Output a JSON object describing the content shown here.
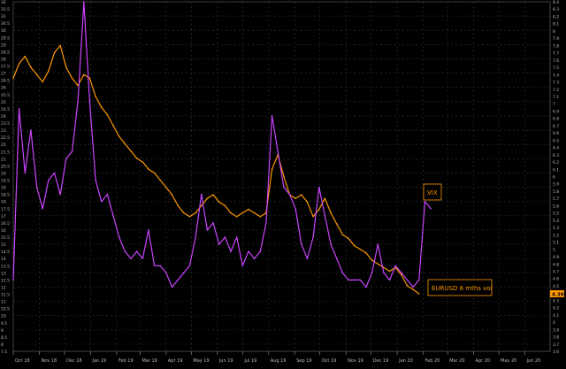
{
  "chart_data": {
    "type": "line",
    "background": "#000000",
    "grid": true,
    "grid_color": "#2e2e2e",
    "x_range": [
      "2018-10-01",
      "2020-07-01"
    ],
    "x_tick_months": [
      "2018-10-01",
      "2018-11-01",
      "2018-12-01",
      "2019-01-01",
      "2019-02-01",
      "2019-03-01",
      "2019-04-01",
      "2019-05-01",
      "2019-06-01",
      "2019-07-01",
      "2019-08-01",
      "2019-09-01",
      "2019-10-01",
      "2019-11-01",
      "2019-12-01",
      "2020-01-01",
      "2020-02-01",
      "2020-03-01",
      "2020-04-01",
      "2020-05-01",
      "2020-06-01"
    ],
    "x_tick_labels": [
      "Oct 18",
      "Nov 18",
      "Dec 18",
      "Jan 19",
      "Feb 19",
      "Mar 19",
      "Apr 19",
      "May 19",
      "Jun 19",
      "Jul 19",
      "Aug 19",
      "Sep 19",
      "Oct 19",
      "Nov 19",
      "Dec 19",
      "Jan 20",
      "Feb 20",
      "Mar 20",
      "Apr 20",
      "May 20",
      "Jun 20"
    ],
    "left_axis": {
      "series": "VIX",
      "ylim": [
        7.5,
        32
      ],
      "ticks": [
        32,
        31.5,
        31,
        30.5,
        30,
        29.5,
        29,
        28.5,
        28,
        27.5,
        27,
        26.5,
        26,
        25.5,
        25,
        24.5,
        24,
        23.5,
        23,
        22.5,
        22,
        21.5,
        21,
        20.5,
        20,
        19.5,
        19,
        18.5,
        18,
        17.5,
        17,
        16.5,
        16,
        15.5,
        15,
        14.5,
        14,
        13.5,
        13,
        12.5,
        12,
        11.5,
        11,
        10.5,
        10,
        9.5,
        9,
        8.5,
        8,
        7.5
      ],
      "tick_labels": [
        "32",
        "31.5",
        "31",
        "30.5",
        "30",
        "29.5",
        "29",
        "28.5",
        "28",
        "27.5",
        "27",
        "26.5",
        "26",
        "25.5",
        "25",
        "24.5",
        "24",
        "23.5",
        "23",
        "22.5",
        "22",
        "21.5",
        "21",
        "20.5",
        "20",
        "19.5",
        "19",
        "18.5",
        "18",
        "17.5",
        "17",
        "16.5",
        "16",
        "15.5",
        "15",
        "14.5",
        "14",
        "13.5",
        "13",
        "12.5",
        "12",
        "11.5",
        "11",
        "10.5",
        "10",
        "9.5",
        "9",
        "8.5",
        "8",
        "7.5"
      ]
    },
    "right_axis": {
      "series": "EURUSD 6 mths vol",
      "ylim": [
        3.6,
        8.4
      ],
      "ticks": [
        8.4,
        8.3,
        8.2,
        8.1,
        8,
        7.9,
        7.8,
        7.7,
        7.6,
        7.5,
        7.4,
        7.3,
        7.2,
        7.1,
        7,
        6.9,
        6.8,
        6.7,
        6.6,
        6.5,
        6.4,
        6.3,
        6.2,
        6.1,
        6,
        5.9,
        5.8,
        5.7,
        5.6,
        5.5,
        5.4,
        5.3,
        5.2,
        5.1,
        5,
        4.9,
        4.8,
        4.7,
        4.6,
        4.5,
        4.4,
        4.3,
        4.2,
        4.1,
        4,
        3.9,
        3.8,
        3.7,
        3.6
      ],
      "tick_labels": [
        "8.4",
        "8.3",
        "8.2",
        "8.1",
        "8",
        "7.9",
        "7.8",
        "7.7",
        "7.6",
        "7.5",
        "7.4",
        "7.3",
        "7.2",
        "7.1",
        "7",
        "6.9",
        "6.8",
        "6.7",
        "6.6",
        "6.5",
        "6.4",
        "6.3",
        "6.2",
        "6.1",
        "6",
        "5.9",
        "5.8",
        "5.7",
        "5.6",
        "5.5",
        "5.4",
        "5.3",
        "5.2",
        "5.1",
        "5",
        "4.9",
        "4.8",
        "4.7",
        "4.6",
        "4.5",
        "4.4",
        "4.3",
        "4.2",
        "4.1",
        "4",
        "3.9",
        "3.8",
        "3.7",
        "3.6"
      ]
    },
    "series": [
      {
        "name": "EURUSD 6 mths vol",
        "axis": "right",
        "color": "#ff9900",
        "label_color": "#ff9900",
        "last_value_label": "4.39",
        "x": [
          "2018-10-01",
          "2018-10-08",
          "2018-10-15",
          "2018-10-22",
          "2018-10-29",
          "2018-11-05",
          "2018-11-12",
          "2018-11-19",
          "2018-11-26",
          "2018-12-03",
          "2018-12-10",
          "2018-12-17",
          "2018-12-24",
          "2018-12-31",
          "2019-01-07",
          "2019-01-14",
          "2019-01-21",
          "2019-01-28",
          "2019-02-04",
          "2019-02-11",
          "2019-02-18",
          "2019-02-25",
          "2019-03-04",
          "2019-03-11",
          "2019-03-18",
          "2019-03-25",
          "2019-04-01",
          "2019-04-08",
          "2019-04-15",
          "2019-04-22",
          "2019-04-29",
          "2019-05-06",
          "2019-05-13",
          "2019-05-20",
          "2019-05-27",
          "2019-06-03",
          "2019-06-10",
          "2019-06-17",
          "2019-06-24",
          "2019-07-01",
          "2019-07-08",
          "2019-07-15",
          "2019-07-22",
          "2019-07-29",
          "2019-08-05",
          "2019-08-12",
          "2019-08-19",
          "2019-08-26",
          "2019-09-02",
          "2019-09-09",
          "2019-09-16",
          "2019-09-23",
          "2019-09-30",
          "2019-10-07",
          "2019-10-14",
          "2019-10-21",
          "2019-10-28",
          "2019-11-04",
          "2019-11-11",
          "2019-11-18",
          "2019-11-25",
          "2019-12-02",
          "2019-12-09",
          "2019-12-16",
          "2019-12-23",
          "2019-12-30",
          "2020-01-06",
          "2020-01-13",
          "2020-01-20",
          "2020-01-27"
        ],
        "values": [
          7.35,
          7.55,
          7.65,
          7.5,
          7.4,
          7.3,
          7.45,
          7.7,
          7.8,
          7.5,
          7.35,
          7.25,
          7.4,
          7.35,
          7.1,
          6.95,
          6.85,
          6.7,
          6.55,
          6.45,
          6.35,
          6.25,
          6.2,
          6.1,
          6.05,
          5.95,
          5.85,
          5.75,
          5.6,
          5.5,
          5.45,
          5.5,
          5.6,
          5.7,
          5.75,
          5.65,
          5.6,
          5.5,
          5.45,
          5.5,
          5.55,
          5.5,
          5.45,
          5.5,
          6.1,
          6.3,
          6.0,
          5.75,
          5.7,
          5.75,
          5.65,
          5.45,
          5.55,
          5.7,
          5.5,
          5.35,
          5.2,
          5.15,
          5.05,
          5.0,
          4.95,
          4.85,
          4.8,
          4.75,
          4.7,
          4.75,
          4.65,
          4.5,
          4.45,
          4.39
        ]
      },
      {
        "name": "VIX",
        "axis": "left",
        "color": "#cc44ff",
        "label_color": "#ff9900",
        "x": [
          "2018-10-01",
          "2018-10-08",
          "2018-10-15",
          "2018-10-22",
          "2018-10-29",
          "2018-11-05",
          "2018-11-12",
          "2018-11-19",
          "2018-11-26",
          "2018-12-03",
          "2018-12-10",
          "2018-12-17",
          "2018-12-24",
          "2018-12-31",
          "2019-01-07",
          "2019-01-14",
          "2019-01-21",
          "2019-01-28",
          "2019-02-04",
          "2019-02-11",
          "2019-02-18",
          "2019-02-25",
          "2019-03-04",
          "2019-03-11",
          "2019-03-18",
          "2019-03-25",
          "2019-04-01",
          "2019-04-08",
          "2019-04-15",
          "2019-04-22",
          "2019-04-29",
          "2019-05-06",
          "2019-05-13",
          "2019-05-20",
          "2019-05-27",
          "2019-06-03",
          "2019-06-10",
          "2019-06-17",
          "2019-06-24",
          "2019-07-01",
          "2019-07-08",
          "2019-07-15",
          "2019-07-22",
          "2019-07-29",
          "2019-08-05",
          "2019-08-12",
          "2019-08-19",
          "2019-08-26",
          "2019-09-02",
          "2019-09-09",
          "2019-09-16",
          "2019-09-23",
          "2019-09-30",
          "2019-10-07",
          "2019-10-14",
          "2019-10-21",
          "2019-10-28",
          "2019-11-04",
          "2019-11-11",
          "2019-11-18",
          "2019-11-25",
          "2019-12-02",
          "2019-12-09",
          "2019-12-16",
          "2019-12-23",
          "2019-12-30",
          "2020-01-06",
          "2020-01-13",
          "2020-01-20",
          "2020-01-27",
          "2020-02-03",
          "2020-02-10"
        ],
        "values": [
          12.5,
          24.5,
          20,
          23,
          19,
          17.5,
          19.5,
          20,
          18.5,
          21,
          21.5,
          25,
          32,
          25,
          19.5,
          18,
          18.5,
          17,
          15.5,
          14.5,
          14,
          14.5,
          14,
          16,
          13.5,
          13.5,
          13,
          12,
          12.5,
          13,
          13.5,
          15.5,
          18.5,
          16,
          16.5,
          15,
          15.5,
          14.5,
          15.5,
          13.5,
          14.5,
          14,
          14.5,
          16.5,
          24,
          21.5,
          19,
          18.5,
          17.5,
          15,
          14,
          15.5,
          19,
          17,
          15,
          14,
          13,
          12.5,
          12.5,
          12.5,
          12,
          13,
          15,
          13,
          12.5,
          13.5,
          13,
          12.5,
          12,
          12.5,
          18,
          17.5
        ]
      }
    ],
    "legend": [
      {
        "text": "VIX",
        "color": "#ff9900"
      },
      {
        "text": "EURUSD 6 mths vol",
        "color": "#ff9900"
      }
    ],
    "last_value_tag": {
      "text": "4.39",
      "color": "#ff9900"
    }
  }
}
